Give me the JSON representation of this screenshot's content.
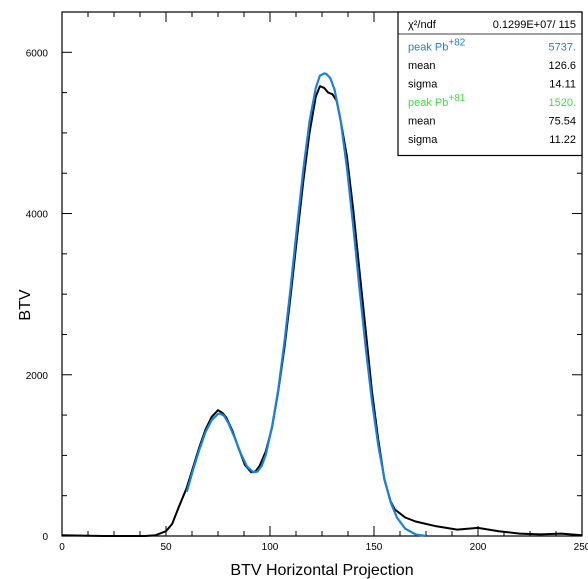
{
  "chart_data": {
    "type": "line",
    "title": "",
    "xlabel": "BTV Horizontal Projection",
    "ylabel": "BTV",
    "xlim": [
      0,
      250
    ],
    "ylim": [
      0,
      6500
    ],
    "x_ticks": [
      "0",
      "50",
      "100",
      "150",
      "200",
      "250"
    ],
    "y_ticks": [
      "0",
      "2000",
      "4000",
      "6000"
    ],
    "grid": false,
    "legend": "top-right",
    "colors": {
      "data": "#000000",
      "fit": "#1a80e0",
      "peak82": "#1a80e0",
      "peak81": "#3ee03e"
    },
    "series": [
      {
        "x": [
          0,
          10,
          20,
          30,
          40,
          45,
          50,
          53,
          56,
          60,
          63,
          66,
          69,
          72,
          75,
          77,
          79,
          82,
          85,
          88,
          91,
          93,
          95,
          98,
          101,
          104,
          107,
          110,
          113,
          116,
          119,
          122,
          124,
          126,
          128,
          130,
          132,
          134,
          137,
          140,
          143,
          146,
          149,
          152,
          155,
          158,
          160,
          165,
          170,
          180,
          190,
          200,
          210,
          220,
          230,
          240,
          250
        ],
        "y": [
          10,
          5,
          0,
          0,
          0,
          10,
          60,
          150,
          350,
          600,
          850,
          1100,
          1320,
          1480,
          1560,
          1530,
          1470,
          1300,
          1080,
          880,
          790,
          800,
          870,
          1050,
          1350,
          1800,
          2350,
          3000,
          3700,
          4400,
          5000,
          5450,
          5580,
          5560,
          5500,
          5480,
          5400,
          5150,
          4700,
          4050,
          3300,
          2550,
          1800,
          1200,
          700,
          430,
          330,
          230,
          180,
          120,
          80,
          100,
          60,
          30,
          20,
          30,
          10
        ]
      },
      {
        "x": [
          60,
          63,
          66,
          69,
          72,
          75,
          76,
          78,
          80,
          83,
          86,
          89,
          92,
          94,
          96,
          98,
          101,
          104,
          107,
          110,
          113,
          116,
          119,
          122,
          124,
          126,
          127,
          129,
          131,
          134,
          137,
          140,
          143,
          146,
          149,
          152,
          155,
          158,
          161,
          165,
          170,
          175
        ],
        "y": [
          550,
          820,
          1070,
          1290,
          1440,
          1515,
          1520,
          1490,
          1400,
          1220,
          1020,
          860,
          790,
          800,
          870,
          1010,
          1360,
          1820,
          2420,
          3100,
          3830,
          4540,
          5140,
          5560,
          5710,
          5737,
          5735,
          5680,
          5540,
          5150,
          4560,
          3850,
          3080,
          2340,
          1680,
          1130,
          710,
          420,
          230,
          90,
          20,
          0
        ]
      }
    ],
    "stats": [
      {
        "label": "χ²/ndf",
        "value": "0.1299E+07/  115",
        "color": "#000000"
      },
      {
        "label": "peak Pb",
        "sup": "+82",
        "value": "5737.",
        "color": "#1a80e0"
      },
      {
        "label": "mean",
        "value": "126.6",
        "color": "#000000"
      },
      {
        "label": "sigma",
        "value": "14.11",
        "color": "#000000"
      },
      {
        "label": "peak Pb",
        "sup": "+81",
        "value": "1520.",
        "color": "#3ee03e"
      },
      {
        "label": "mean",
        "value": "75.54",
        "color": "#000000"
      },
      {
        "label": "sigma",
        "value": "11.22",
        "color": "#000000"
      }
    ]
  }
}
